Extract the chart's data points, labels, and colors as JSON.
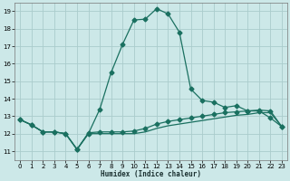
{
  "xlabel": "Humidex (Indice chaleur)",
  "background_color": "#cce8e8",
  "grid_color": "#aacccc",
  "line_color": "#1a7060",
  "xlim": [
    -0.5,
    23.5
  ],
  "ylim": [
    10.5,
    19.5
  ],
  "xticks": [
    0,
    1,
    2,
    3,
    4,
    5,
    6,
    7,
    8,
    9,
    10,
    11,
    12,
    13,
    14,
    15,
    16,
    17,
    18,
    19,
    20,
    21,
    22,
    23
  ],
  "yticks": [
    11,
    12,
    13,
    14,
    15,
    16,
    17,
    18,
    19
  ],
  "curve1_x": [
    0,
    1,
    2,
    3,
    4,
    5,
    6,
    7,
    8,
    9,
    10,
    11,
    12,
    13,
    14,
    15,
    16,
    17,
    18,
    19,
    20,
    21,
    22,
    23
  ],
  "curve1_y": [
    12.8,
    12.5,
    12.1,
    12.1,
    12.0,
    11.1,
    12.0,
    13.4,
    15.5,
    17.1,
    18.5,
    18.55,
    19.15,
    18.85,
    17.8,
    14.55,
    13.9,
    13.8,
    13.5,
    13.6,
    13.3,
    13.3,
    12.9,
    12.4
  ],
  "curve2_x": [
    0,
    1,
    2,
    3,
    4,
    5,
    6,
    7,
    8,
    9,
    10,
    11,
    12,
    13,
    14,
    15,
    16,
    17,
    18,
    19,
    20,
    21,
    22,
    23
  ],
  "curve2_y": [
    12.8,
    12.5,
    12.1,
    12.1,
    12.0,
    11.1,
    12.05,
    12.1,
    12.1,
    12.1,
    12.15,
    12.3,
    12.55,
    12.7,
    12.8,
    12.9,
    13.0,
    13.1,
    13.2,
    13.25,
    13.3,
    13.35,
    13.3,
    12.4
  ],
  "curve3_x": [
    0,
    1,
    2,
    3,
    4,
    5,
    6,
    7,
    8,
    9,
    10,
    11,
    12,
    13,
    14,
    15,
    16,
    17,
    18,
    19,
    20,
    21,
    22,
    23
  ],
  "curve3_y": [
    12.8,
    12.5,
    12.1,
    12.1,
    12.0,
    11.1,
    12.0,
    12.0,
    12.0,
    12.0,
    12.0,
    12.1,
    12.3,
    12.45,
    12.55,
    12.65,
    12.75,
    12.85,
    12.95,
    13.05,
    13.1,
    13.2,
    13.2,
    12.4
  ],
  "xlabel_fontsize": 5.5,
  "tick_fontsize": 5.0,
  "markersize": 2.5
}
